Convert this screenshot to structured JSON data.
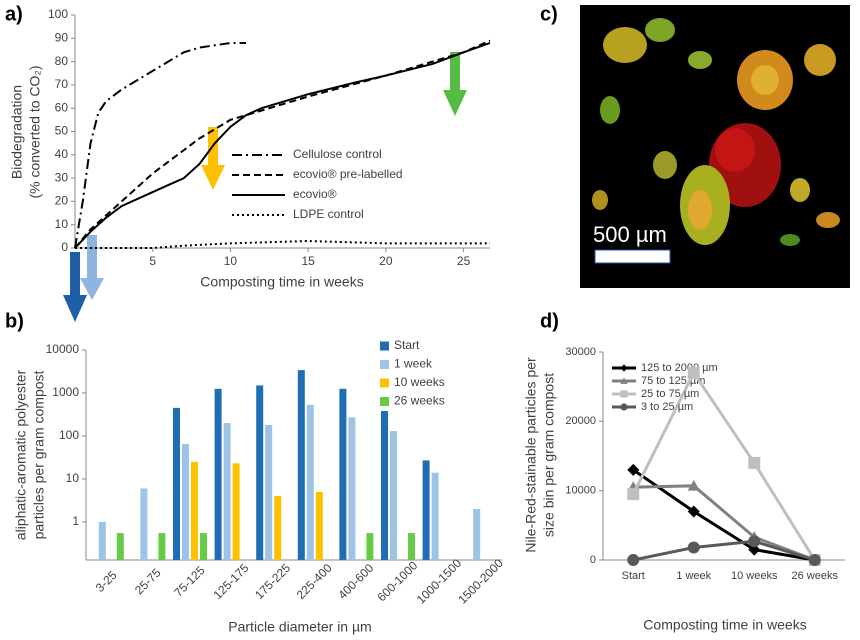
{
  "chart_data": [
    {
      "type": "line",
      "panel_label": "a)",
      "x_label": "Composting time in weeks",
      "y_label": [
        "Biodegradation",
        "(% converted to CO₂)"
      ],
      "xlim": [
        0,
        26.7
      ],
      "xticks": [
        5,
        10,
        15,
        20,
        25
      ],
      "ylim": [
        0,
        100
      ],
      "yticks": [
        0,
        10,
        20,
        30,
        40,
        50,
        60,
        70,
        80,
        90,
        100
      ],
      "series": [
        {
          "name": "Cellulose control",
          "style": "dashdot",
          "color": "#000000",
          "x": [
            0,
            0.5,
            1,
            1.5,
            2,
            3,
            4,
            5,
            6,
            7,
            8,
            9,
            10,
            11
          ],
          "values": [
            0,
            20,
            45,
            58,
            63,
            68,
            72,
            76,
            80,
            84,
            86,
            87,
            88,
            88
          ]
        },
        {
          "name": "ecovio® pre-labelled",
          "style": "dashed",
          "color": "#000000",
          "x": [
            0,
            1,
            2,
            3,
            4,
            5,
            6,
            7,
            8,
            9,
            10,
            11,
            12,
            15,
            20,
            25,
            26.7
          ],
          "values": [
            0,
            8,
            14,
            20,
            26,
            32,
            37,
            42,
            47,
            51,
            55,
            57,
            59,
            65,
            74,
            84,
            89
          ]
        },
        {
          "name": "ecovio®",
          "style": "solid",
          "color": "#000000",
          "x": [
            0,
            1,
            2,
            3,
            4,
            5,
            6,
            7,
            8,
            9,
            10,
            11,
            12,
            15,
            18,
            20,
            23,
            25,
            26.7
          ],
          "values": [
            0,
            7,
            13,
            18,
            21,
            24,
            27,
            30,
            36,
            45,
            52,
            57,
            60,
            66,
            71,
            74,
            79,
            84,
            88
          ]
        },
        {
          "name": "LDPE control",
          "style": "dotted",
          "color": "#000000",
          "x": [
            0,
            5,
            7,
            10,
            15,
            20,
            26.7
          ],
          "values": [
            0,
            0,
            1,
            2,
            3,
            2,
            2
          ]
        }
      ]
    },
    {
      "type": "bar",
      "panel_label": "b)",
      "log_scale": true,
      "x_label": "Particle diameter in µm",
      "y_label": [
        "aliphatic-aromatic polyester",
        "particles per gram compost"
      ],
      "categories": [
        "3-25",
        "25-75",
        "75-125",
        "125-175",
        "175-225",
        "225-400",
        "400-600",
        "600-1000",
        "1000-1500",
        "1500-2000"
      ],
      "ylim": [
        0.13,
        10000
      ],
      "yticks": [
        1,
        10,
        100,
        1000,
        10000
      ],
      "series": [
        {
          "name": "Start",
          "color": "#1f6db3",
          "values": [
            null,
            null,
            450,
            1250,
            1500,
            3400,
            1250,
            380,
            27,
            null
          ]
        },
        {
          "name": "1 week",
          "color": "#9dc3e6",
          "values": [
            1,
            6,
            65,
            200,
            180,
            530,
            270,
            130,
            14,
            2
          ]
        },
        {
          "name": "10 weeks",
          "color": "#ffc000",
          "values": [
            null,
            null,
            25,
            23,
            4,
            5,
            null,
            null,
            null,
            null
          ]
        },
        {
          "name": "26 weeks",
          "color": "#66cc44",
          "values": [
            0.55,
            0.55,
            0.55,
            null,
            null,
            null,
            0.55,
            0.55,
            null,
            null
          ]
        }
      ]
    },
    {
      "type": "marker_line",
      "panel_label": "d)",
      "x_label": "Composting time in weeks",
      "y_label": [
        "Nile-Red-stainable particles per",
        "size bin per gram compost"
      ],
      "categories": [
        "Start",
        "1 week",
        "10 weeks",
        "26 weeks"
      ],
      "ylim": [
        0,
        30000
      ],
      "yticks": [
        0,
        10000,
        20000,
        30000
      ],
      "series": [
        {
          "name": "125 to 2000 µm",
          "color": "#000000",
          "marker": "diamond",
          "values": [
            13000,
            7000,
            1500,
            0
          ]
        },
        {
          "name": "75 to 125 µm",
          "color": "#808080",
          "marker": "triangle",
          "values": [
            10500,
            10700,
            3300,
            0
          ]
        },
        {
          "name": "25 to 75 µm",
          "color": "#bfbfbf",
          "marker": "square",
          "values": [
            9500,
            27000,
            14000,
            0
          ]
        },
        {
          "name": "3 to 25 µm",
          "color": "#595959",
          "marker": "circle",
          "values": [
            0,
            1800,
            2700,
            0
          ]
        }
      ]
    }
  ],
  "micrograph": {
    "panel_label": "c)",
    "scale_bar": "500 µm"
  }
}
